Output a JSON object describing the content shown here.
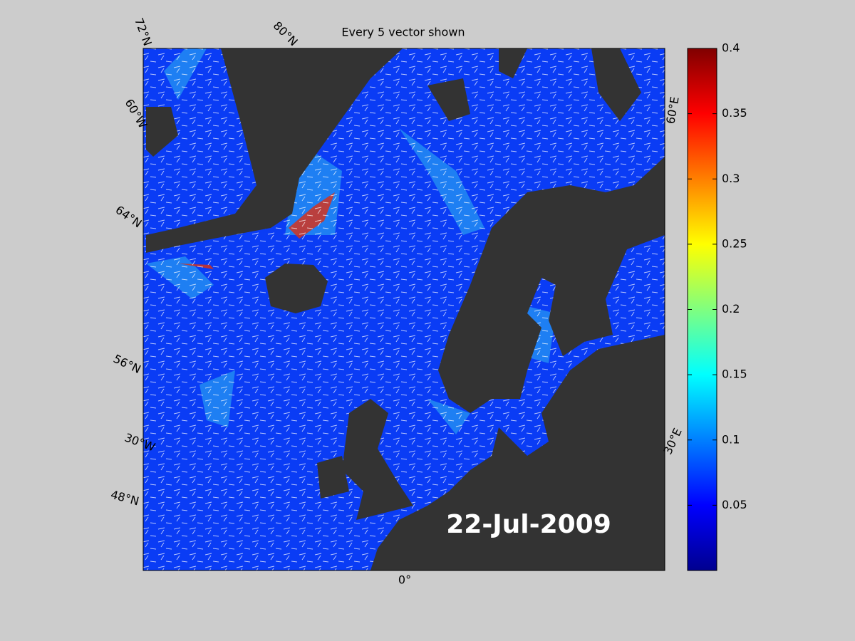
{
  "title": "Every 5 vector shown",
  "date_label": "22-Jul-2009",
  "graticule_labels": [
    "72°N",
    "80°N",
    "60°W",
    "64°N",
    "56°N",
    "30°W",
    "48°N",
    "0°",
    "30°E",
    "60°E"
  ],
  "colorbar": {
    "colormap": "jet",
    "ylim": [
      0,
      0.4
    ],
    "yticks": [
      0.05,
      0.1,
      0.15,
      0.2,
      0.25,
      0.3,
      0.35,
      0.4
    ]
  }
}
